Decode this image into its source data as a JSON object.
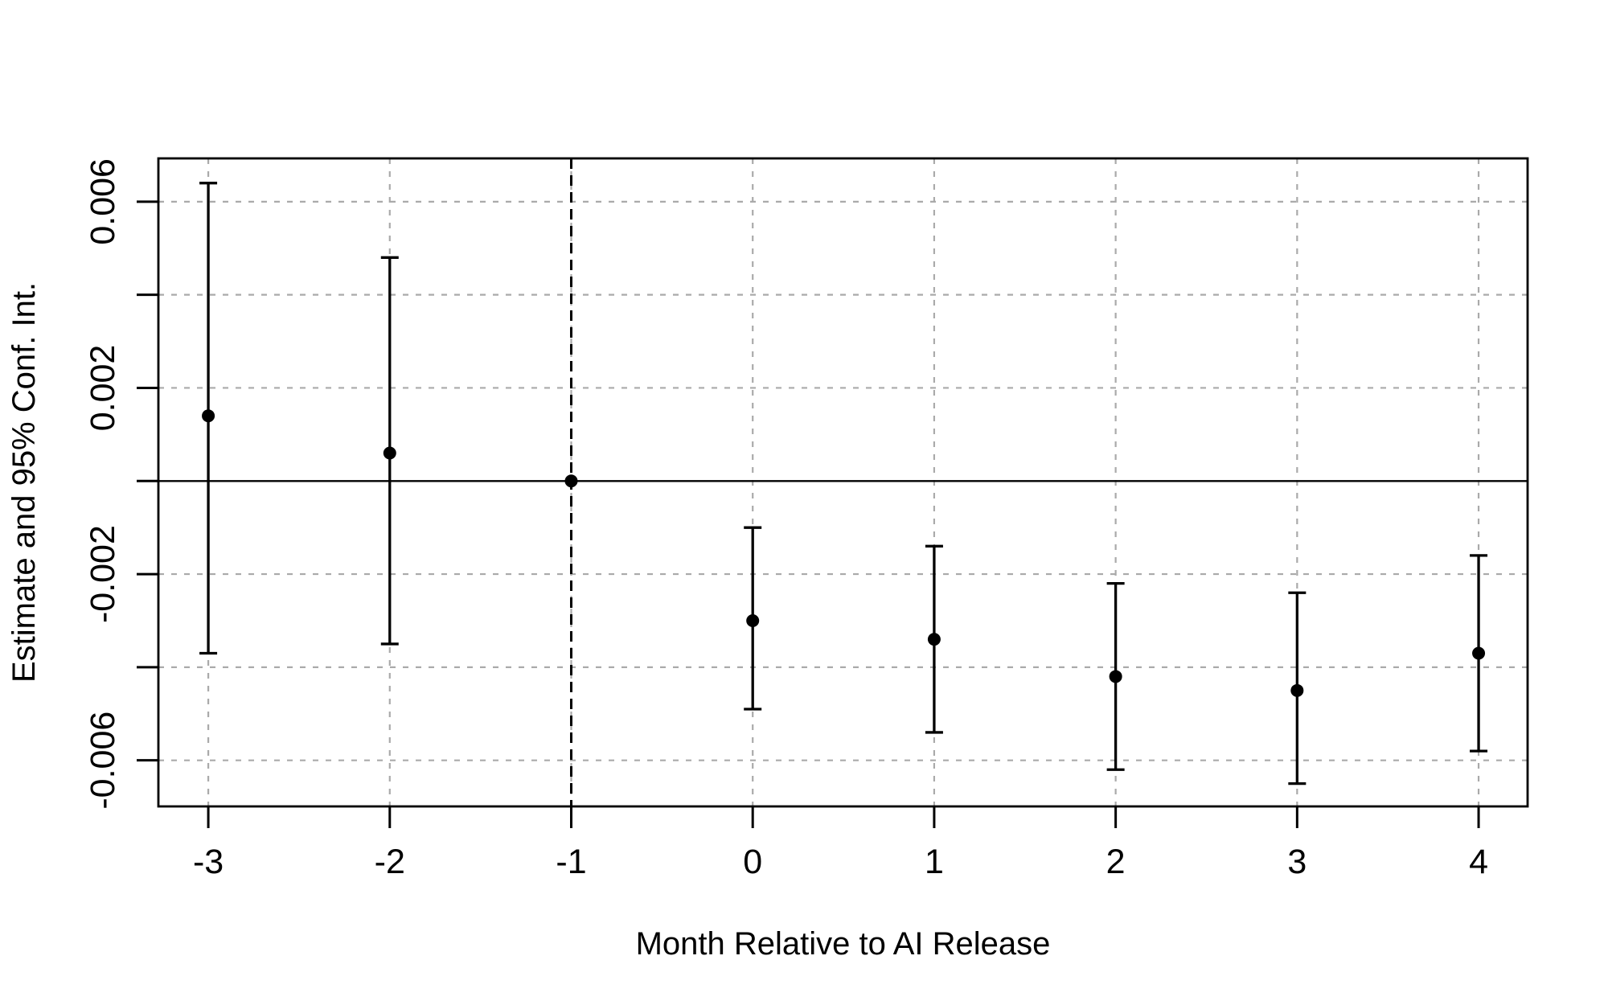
{
  "figure": {
    "background": "#ffffff",
    "description": "Event-study coefficient plot with 95% confidence intervals"
  },
  "chart_data": {
    "type": "scatter",
    "subtype": "point-estimates-with-error-bars",
    "title": "",
    "xlabel": "Month Relative to AI Release",
    "ylabel": "Estimate and 95% Conf. Int.",
    "x": [
      -3,
      -2,
      -1,
      0,
      1,
      2,
      3,
      4
    ],
    "xtick_labels": [
      "-3",
      "-2",
      "-1",
      "0",
      "1",
      "2",
      "3",
      "4"
    ],
    "yticks": [
      -0.006,
      -0.004,
      -0.002,
      0,
      0.002,
      0.004,
      0.006
    ],
    "ytick_labels": [
      "-0.006",
      "",
      "-0.002",
      "",
      "0.002",
      "",
      "0.006"
    ],
    "xlim": [
      -3.275,
      4.27
    ],
    "ylim": [
      -0.00699,
      0.00693
    ],
    "grid": true,
    "legend": "none",
    "zero_reference_line_y": 0,
    "vertical_dashed_line_x": -1,
    "reference_month": -1,
    "points": [
      {
        "month": -3,
        "estimate": 0.0014,
        "ci_low": -0.0037,
        "ci_high": 0.0064
      },
      {
        "month": -2,
        "estimate": 0.0006,
        "ci_low": -0.0035,
        "ci_high": 0.0048
      },
      {
        "month": -1,
        "estimate": 0.0,
        "ci_low": null,
        "ci_high": null
      },
      {
        "month": 0,
        "estimate": -0.003,
        "ci_low": -0.0049,
        "ci_high": -0.001
      },
      {
        "month": 1,
        "estimate": -0.0034,
        "ci_low": -0.0054,
        "ci_high": -0.0014
      },
      {
        "month": 2,
        "estimate": -0.0042,
        "ci_low": -0.0062,
        "ci_high": -0.0022
      },
      {
        "month": 3,
        "estimate": -0.0045,
        "ci_low": -0.0065,
        "ci_high": -0.0024
      },
      {
        "month": 4,
        "estimate": -0.0037,
        "ci_low": -0.0058,
        "ci_high": -0.0016
      }
    ],
    "colors": {
      "points": "#000000",
      "error_bars": "#000000",
      "axis": "#000000",
      "grid": "#aaaaaa",
      "zero_line": "#000000",
      "dashed_line": "#000000"
    }
  }
}
